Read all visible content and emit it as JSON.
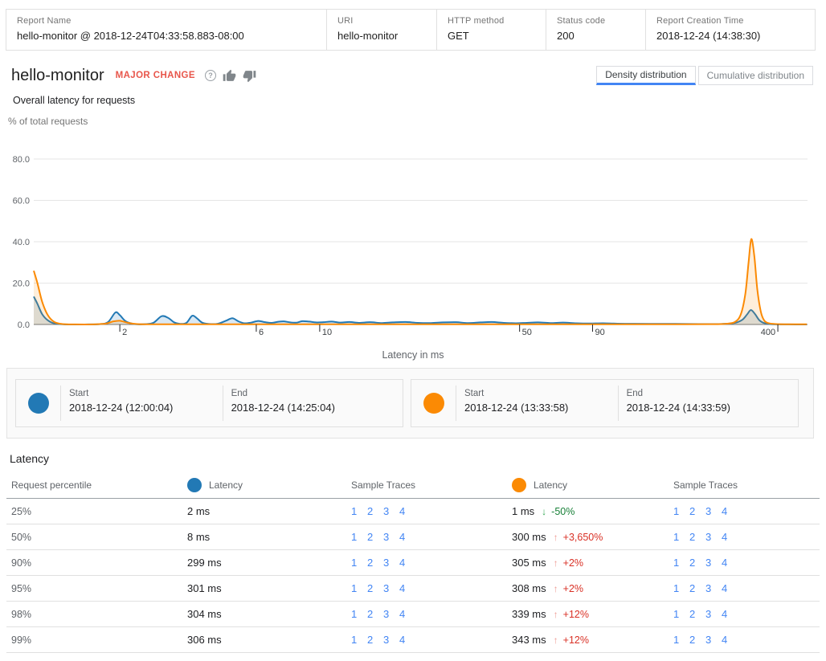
{
  "header": {
    "fields": [
      {
        "label": "Report Name",
        "value": "hello-monitor @ 2018-12-24T04:33:58.883-08:00"
      },
      {
        "label": "URI",
        "value": "hello-monitor"
      },
      {
        "label": "HTTP method",
        "value": "GET"
      },
      {
        "label": "Status code",
        "value": "200"
      },
      {
        "label": "Report Creation Time",
        "value": "2018-12-24 (14:38:30)"
      }
    ]
  },
  "title": {
    "name": "hello-monitor",
    "badge": "MAJOR CHANGE"
  },
  "tabs": {
    "active": "density",
    "density_label": "Density distribution",
    "cumulative_label": "Cumulative distribution"
  },
  "chart_data": {
    "type": "area",
    "title": "Overall latency for requests",
    "ylabel": "% of total requests",
    "xlabel": "Latency in ms",
    "x_scale": "log",
    "xlim": [
      1,
      510
    ],
    "ylim": [
      0,
      80
    ],
    "y_ticks": [
      0,
      20,
      40,
      60,
      80
    ],
    "y_tick_labels": [
      "0.0",
      "20.0",
      "40.0",
      "60.0",
      "80.0"
    ],
    "x_ticks": [
      2,
      6,
      10,
      50,
      90,
      400
    ],
    "grid": true,
    "series": [
      {
        "name": "baseline",
        "color": "#2279b5",
        "fill": "rgba(34,121,181,0.17)",
        "points": [
          [
            1,
            13.5
          ],
          [
            1.03,
            10
          ],
          [
            1.07,
            5
          ],
          [
            1.12,
            2
          ],
          [
            1.18,
            0.5
          ],
          [
            1.28,
            0.05
          ],
          [
            1.5,
            0.02
          ],
          [
            1.7,
            0.15
          ],
          [
            1.82,
            1.2
          ],
          [
            1.93,
            5.8
          ],
          [
            2.0,
            4.5
          ],
          [
            2.1,
            1.5
          ],
          [
            2.25,
            0.2
          ],
          [
            2.45,
            0.15
          ],
          [
            2.62,
            0.8
          ],
          [
            2.8,
            4.0
          ],
          [
            2.95,
            3.2
          ],
          [
            3.1,
            1.0
          ],
          [
            3.25,
            0.3
          ],
          [
            3.42,
            0.8
          ],
          [
            3.58,
            4.2
          ],
          [
            3.72,
            3.0
          ],
          [
            3.88,
            0.9
          ],
          [
            4.1,
            0.25
          ],
          [
            4.4,
            0.35
          ],
          [
            4.7,
            1.8
          ],
          [
            4.95,
            3.0
          ],
          [
            5.2,
            1.5
          ],
          [
            5.45,
            0.6
          ],
          [
            5.75,
            0.9
          ],
          [
            6.1,
            1.7
          ],
          [
            6.45,
            1.1
          ],
          [
            6.8,
            0.8
          ],
          [
            7.15,
            1.3
          ],
          [
            7.5,
            1.5
          ],
          [
            7.9,
            1.0
          ],
          [
            8.3,
            0.9
          ],
          [
            8.7,
            1.6
          ],
          [
            9.2,
            1.4
          ],
          [
            9.7,
            1.0
          ],
          [
            10.3,
            1.1
          ],
          [
            11,
            1.4
          ],
          [
            11.8,
            0.9
          ],
          [
            12.7,
            1.2
          ],
          [
            13.7,
            0.8
          ],
          [
            15,
            1.1
          ],
          [
            16.5,
            0.7
          ],
          [
            18,
            1.0
          ],
          [
            20,
            1.2
          ],
          [
            22,
            0.8
          ],
          [
            24.5,
            0.7
          ],
          [
            27,
            1.0
          ],
          [
            30,
            1.1
          ],
          [
            33,
            0.7
          ],
          [
            36.5,
            1.0
          ],
          [
            40,
            1.2
          ],
          [
            44,
            0.8
          ],
          [
            48.5,
            0.6
          ],
          [
            53,
            0.8
          ],
          [
            58,
            1.0
          ],
          [
            64,
            0.7
          ],
          [
            71,
            0.9
          ],
          [
            79,
            0.6
          ],
          [
            88,
            0.5
          ],
          [
            98,
            0.6
          ],
          [
            110,
            0.4
          ],
          [
            125,
            0.35
          ],
          [
            143,
            0.3
          ],
          [
            165,
            0.3
          ],
          [
            190,
            0.25
          ],
          [
            220,
            0.2
          ],
          [
            255,
            0.25
          ],
          [
            282,
            0.7
          ],
          [
            300,
            2.2
          ],
          [
            312,
            4.8
          ],
          [
            322,
            7
          ],
          [
            333,
            5
          ],
          [
            345,
            2
          ],
          [
            360,
            0.6
          ],
          [
            380,
            0.15
          ],
          [
            410,
            0.05
          ],
          [
            460,
            0.02
          ],
          [
            505,
            0.02
          ]
        ]
      },
      {
        "name": "comparison",
        "color": "#fb8a04",
        "fill": "rgba(251,138,4,0.15)",
        "points": [
          [
            1,
            26
          ],
          [
            1.03,
            20
          ],
          [
            1.07,
            11
          ],
          [
            1.12,
            4.5
          ],
          [
            1.18,
            1.2
          ],
          [
            1.26,
            0.2
          ],
          [
            1.4,
            0.05
          ],
          [
            1.6,
            0.05
          ],
          [
            1.78,
            0.4
          ],
          [
            1.9,
            1.5
          ],
          [
            2.0,
            1.8
          ],
          [
            2.12,
            0.9
          ],
          [
            2.3,
            0.2
          ],
          [
            2.6,
            0.1
          ],
          [
            3,
            0.1
          ],
          [
            3.6,
            0.12
          ],
          [
            4.4,
            0.1
          ],
          [
            5.5,
            0.1
          ],
          [
            7,
            0.12
          ],
          [
            9,
            0.1
          ],
          [
            12,
            0.1
          ],
          [
            16,
            0.1
          ],
          [
            21,
            0.12
          ],
          [
            28,
            0.1
          ],
          [
            38,
            0.1
          ],
          [
            50,
            0.12
          ],
          [
            65,
            0.1
          ],
          [
            85,
            0.1
          ],
          [
            110,
            0.1
          ],
          [
            145,
            0.1
          ],
          [
            190,
            0.12
          ],
          [
            230,
            0.15
          ],
          [
            262,
            0.3
          ],
          [
            283,
            1.2
          ],
          [
            297,
            5
          ],
          [
            308,
            15
          ],
          [
            316,
            30
          ],
          [
            323,
            41.3
          ],
          [
            331,
            33
          ],
          [
            339,
            17
          ],
          [
            349,
            6
          ],
          [
            359,
            1.8
          ],
          [
            372,
            0.6
          ],
          [
            390,
            0.25
          ],
          [
            420,
            0.12
          ],
          [
            470,
            0.1
          ],
          [
            505,
            0.1
          ]
        ]
      }
    ]
  },
  "legend": {
    "start_label": "Start",
    "end_label": "End",
    "items": [
      {
        "series": "baseline",
        "color": "#2279b5",
        "start": "2018-12-24 (12:00:04)",
        "end": "2018-12-24 (14:25:04)"
      },
      {
        "series": "comparison",
        "color": "#fb8a04",
        "start": "2018-12-24 (13:33:58)",
        "end": "2018-12-24 (14:33:59)"
      }
    ]
  },
  "table": {
    "section_title": "Latency",
    "columns": {
      "percentile": "Request percentile",
      "latency": "Latency",
      "traces": "Sample Traces"
    },
    "trace_links": [
      "1",
      "2",
      "3",
      "4"
    ],
    "rows": [
      {
        "percentile": "25%",
        "baseline_latency": "2 ms",
        "comparison_latency": "1 ms",
        "delta": "-50%",
        "delta_direction": "down"
      },
      {
        "percentile": "50%",
        "baseline_latency": "8 ms",
        "comparison_latency": "300 ms",
        "delta": "+3,650%",
        "delta_direction": "up"
      },
      {
        "percentile": "90%",
        "baseline_latency": "299 ms",
        "comparison_latency": "305 ms",
        "delta": "+2%",
        "delta_direction": "up"
      },
      {
        "percentile": "95%",
        "baseline_latency": "301 ms",
        "comparison_latency": "308 ms",
        "delta": "+2%",
        "delta_direction": "up"
      },
      {
        "percentile": "98%",
        "baseline_latency": "304 ms",
        "comparison_latency": "339 ms",
        "delta": "+12%",
        "delta_direction": "up"
      },
      {
        "percentile": "99%",
        "baseline_latency": "306 ms",
        "comparison_latency": "343 ms",
        "delta": "+12%",
        "delta_direction": "up"
      }
    ]
  }
}
